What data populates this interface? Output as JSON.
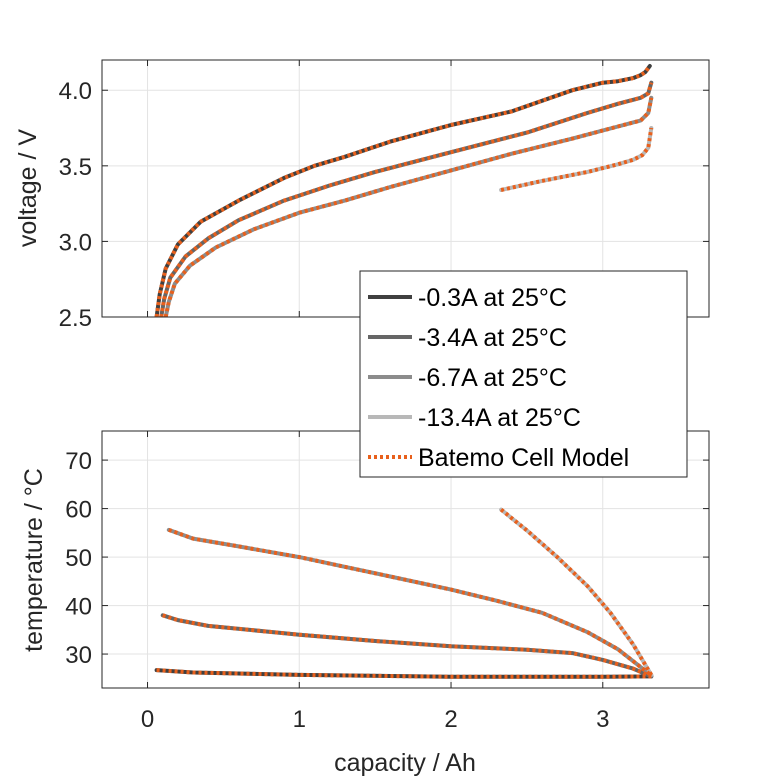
{
  "chart_data": [
    {
      "type": "line",
      "ylabel": "voltage / V",
      "xlim": [
        -0.3,
        3.7
      ],
      "ylim": [
        2.5,
        4.2
      ],
      "xticks": [
        0,
        1,
        2,
        3
      ],
      "yticks": [
        "2.5",
        "3.0",
        "3.5",
        "4.0"
      ],
      "show_xticklabels": false,
      "grid": true,
      "series": [
        {
          "name": "-0.3A at 25°C",
          "color": "#404040",
          "x": [
            0.06,
            0.08,
            0.12,
            0.2,
            0.35,
            0.6,
            0.9,
            1.1,
            1.3,
            1.6,
            2.0,
            2.4,
            2.8,
            3.0,
            3.1,
            3.2,
            3.25,
            3.28,
            3.31
          ],
          "y": [
            2.5,
            2.65,
            2.82,
            2.98,
            3.13,
            3.27,
            3.42,
            3.5,
            3.56,
            3.66,
            3.77,
            3.86,
            4.0,
            4.05,
            4.06,
            4.08,
            4.1,
            4.12,
            4.16
          ]
        },
        {
          "name": "-3.4A at 25°C",
          "color": "#666666",
          "x": [
            0.09,
            0.11,
            0.15,
            0.25,
            0.4,
            0.6,
            0.9,
            1.2,
            1.5,
            2.0,
            2.5,
            2.9,
            3.1,
            3.25,
            3.3,
            3.32
          ],
          "y": [
            2.5,
            2.62,
            2.76,
            2.9,
            3.02,
            3.14,
            3.27,
            3.37,
            3.46,
            3.59,
            3.72,
            3.85,
            3.91,
            3.95,
            3.98,
            4.05
          ]
        },
        {
          "name": "-6.7A at 25°C",
          "color": "#8c8c8c",
          "x": [
            0.12,
            0.14,
            0.18,
            0.28,
            0.45,
            0.7,
            1.0,
            1.3,
            1.6,
            2.0,
            2.4,
            2.8,
            3.1,
            3.25,
            3.3,
            3.32
          ],
          "y": [
            2.5,
            2.6,
            2.72,
            2.84,
            2.96,
            3.08,
            3.19,
            3.27,
            3.36,
            3.47,
            3.58,
            3.68,
            3.76,
            3.8,
            3.85,
            3.95
          ]
        },
        {
          "name": "-13.4A at 25°C",
          "color": "#b8b8b8",
          "x": [
            2.33,
            2.6,
            2.9,
            3.1,
            3.2,
            3.26,
            3.3,
            3.32
          ],
          "y": [
            3.34,
            3.4,
            3.46,
            3.51,
            3.54,
            3.57,
            3.62,
            3.75
          ]
        },
        {
          "name": "Batemo Cell Model",
          "color": "#e8601c",
          "dashed": true,
          "x": [],
          "y": []
        }
      ]
    },
    {
      "type": "line",
      "xlabel": "capacity / Ah",
      "ylabel": "temperature / °C",
      "xlim": [
        -0.3,
        3.7
      ],
      "ylim": [
        23,
        76
      ],
      "xticks": [
        0,
        1,
        2,
        3
      ],
      "xticklabels": [
        "0",
        "1",
        "2",
        "3"
      ],
      "yticks": [
        "30",
        "40",
        "50",
        "60",
        "70"
      ],
      "grid": true,
      "series": [
        {
          "name": "-0.3A at 25°C",
          "color": "#404040",
          "x": [
            0.06,
            0.3,
            1.0,
            2.0,
            3.0,
            3.32
          ],
          "y": [
            26.7,
            26.2,
            25.7,
            25.3,
            25.3,
            25.4
          ]
        },
        {
          "name": "-3.4A at 25°C",
          "color": "#666666",
          "x": [
            0.1,
            0.2,
            0.4,
            0.7,
            1.0,
            1.5,
            2.0,
            2.5,
            2.8,
            3.0,
            3.2,
            3.32
          ],
          "y": [
            38.0,
            37.0,
            35.8,
            34.9,
            34.0,
            32.7,
            31.6,
            30.9,
            30.2,
            28.8,
            27.0,
            25.4
          ]
        },
        {
          "name": "-6.7A at 25°C",
          "color": "#8c8c8c",
          "x": [
            0.14,
            0.3,
            0.6,
            1.0,
            1.3,
            1.6,
            2.0,
            2.3,
            2.6,
            2.9,
            3.1,
            3.32
          ],
          "y": [
            55.6,
            53.8,
            52.2,
            50.0,
            48.0,
            46.0,
            43.3,
            41.0,
            38.5,
            34.5,
            31.0,
            25.6
          ]
        },
        {
          "name": "-13.4A at 25°C",
          "color": "#b8b8b8",
          "x": [
            2.33,
            2.5,
            2.7,
            2.9,
            3.05,
            3.2,
            3.32
          ],
          "y": [
            59.8,
            55.5,
            50.0,
            44.0,
            38.5,
            32.0,
            25.7
          ]
        },
        {
          "name": "Batemo Cell Model",
          "color": "#e8601c",
          "dashed": true,
          "x": [],
          "y": []
        }
      ]
    }
  ],
  "legend": {
    "entries": [
      {
        "label": "-0.3A at 25°C",
        "color": "#404040",
        "dashed": false
      },
      {
        "label": "-3.4A at 25°C",
        "color": "#666666",
        "dashed": false
      },
      {
        "label": "-6.7A at 25°C",
        "color": "#8c8c8c",
        "dashed": false
      },
      {
        "label": "-13.4A at 25°C",
        "color": "#b8b8b8",
        "dashed": false
      },
      {
        "label": "Batemo Cell Model",
        "color": "#e8601c",
        "dashed": true
      }
    ]
  }
}
